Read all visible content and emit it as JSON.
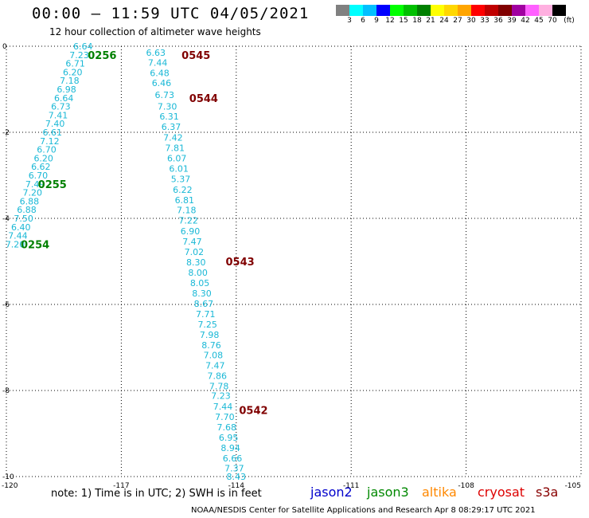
{
  "header": {
    "title": "00:00 – 11:59 UTC 04/05/2021",
    "subtitle": "12 hour collection of altimeter wave heights"
  },
  "colorbar": {
    "colors": [
      "#808080",
      "#00ffff",
      "#00bfff",
      "#0000ff",
      "#00ff00",
      "#00c000",
      "#008000",
      "#ffff00",
      "#ffd700",
      "#ffa500",
      "#ff0000",
      "#c00000",
      "#800000",
      "#a000a0",
      "#ff60ff",
      "#ffb0e0",
      "#000000"
    ],
    "labels": [
      "3",
      "6",
      "9",
      "12",
      "15",
      "18",
      "21",
      "24",
      "27",
      "30",
      "33",
      "36",
      "39",
      "42",
      "45",
      "70",
      "(ft)"
    ]
  },
  "map": {
    "lon_ticks": [
      "-120",
      "-117",
      "-114",
      "-111",
      "-108",
      "-105"
    ],
    "lat_ticks": [
      "0",
      "-2",
      "-4",
      "-6",
      "-8",
      "-10"
    ],
    "lon_range": [
      -120,
      -105
    ],
    "lat_range": [
      -10,
      0
    ],
    "grid": "dotted",
    "label_color": "#1ab8d6"
  },
  "tracks": [
    {
      "satellite": "jason3",
      "points": [
        {
          "lon": -118.0,
          "lat": 0.0,
          "v": "6.64"
        },
        {
          "lon": -118.1,
          "lat": -0.2,
          "v": "7.23"
        },
        {
          "lon": -118.2,
          "lat": -0.4,
          "v": "6.71"
        },
        {
          "lon": -118.27,
          "lat": -0.6,
          "v": "6.20"
        },
        {
          "lon": -118.35,
          "lat": -0.8,
          "v": "7.18"
        },
        {
          "lon": -118.43,
          "lat": -1.0,
          "v": "6.98"
        },
        {
          "lon": -118.5,
          "lat": -1.2,
          "v": "6.64"
        },
        {
          "lon": -118.58,
          "lat": -1.4,
          "v": "6.73"
        },
        {
          "lon": -118.65,
          "lat": -1.6,
          "v": "7.41"
        },
        {
          "lon": -118.73,
          "lat": -1.8,
          "v": "7.40"
        },
        {
          "lon": -118.8,
          "lat": -2.0,
          "v": "6.61"
        },
        {
          "lon": -118.87,
          "lat": -2.2,
          "v": "7.12"
        },
        {
          "lon": -118.95,
          "lat": -2.4,
          "v": "6.70"
        },
        {
          "lon": -119.03,
          "lat": -2.6,
          "v": "6.20"
        },
        {
          "lon": -119.1,
          "lat": -2.8,
          "v": "6.62"
        },
        {
          "lon": -119.17,
          "lat": -3.0,
          "v": "6.70"
        },
        {
          "lon": -119.25,
          "lat": -3.2,
          "v": "7.49"
        },
        {
          "lon": -119.32,
          "lat": -3.4,
          "v": "7.20"
        },
        {
          "lon": -119.4,
          "lat": -3.6,
          "v": "6.88"
        },
        {
          "lon": -119.47,
          "lat": -3.8,
          "v": "6.88"
        },
        {
          "lon": -119.55,
          "lat": -4.0,
          "v": "7.50"
        },
        {
          "lon": -119.62,
          "lat": -4.2,
          "v": "6.40"
        },
        {
          "lon": -119.7,
          "lat": -4.4,
          "v": "7.44"
        },
        {
          "lon": -119.77,
          "lat": -4.6,
          "v": "7.20"
        }
      ],
      "times": [
        {
          "label": "0256",
          "lon": -117.5,
          "lat": -0.2
        },
        {
          "label": "0255",
          "lon": -118.8,
          "lat": -3.2
        },
        {
          "label": "0254",
          "lon": -119.25,
          "lat": -4.6
        }
      ]
    },
    {
      "satellite": "cryosat",
      "points": [
        {
          "lon": -116.1,
          "lat": -0.15,
          "v": "6.63"
        },
        {
          "lon": -116.05,
          "lat": -0.38,
          "v": "7.44"
        },
        {
          "lon": -116.0,
          "lat": -0.62,
          "v": "6.48"
        },
        {
          "lon": -115.95,
          "lat": -0.85,
          "v": "6.46"
        },
        {
          "lon": -115.87,
          "lat": -1.13,
          "v": "6.73"
        },
        {
          "lon": -115.8,
          "lat": -1.4,
          "v": "7.30"
        },
        {
          "lon": -115.75,
          "lat": -1.63,
          "v": "6.31"
        },
        {
          "lon": -115.7,
          "lat": -1.87,
          "v": "6.37"
        },
        {
          "lon": -115.65,
          "lat": -2.12,
          "v": "7.42"
        },
        {
          "lon": -115.6,
          "lat": -2.36,
          "v": "7.81"
        },
        {
          "lon": -115.55,
          "lat": -2.6,
          "v": "6.07"
        },
        {
          "lon": -115.5,
          "lat": -2.84,
          "v": "6.01"
        },
        {
          "lon": -115.45,
          "lat": -3.08,
          "v": "5.37"
        },
        {
          "lon": -115.4,
          "lat": -3.33,
          "v": "6.22"
        },
        {
          "lon": -115.35,
          "lat": -3.57,
          "v": "6.81"
        },
        {
          "lon": -115.3,
          "lat": -3.81,
          "v": "7.18"
        },
        {
          "lon": -115.25,
          "lat": -4.05,
          "v": "7.22"
        },
        {
          "lon": -115.2,
          "lat": -4.3,
          "v": "6.90"
        },
        {
          "lon": -115.15,
          "lat": -4.54,
          "v": "7.47"
        },
        {
          "lon": -115.1,
          "lat": -4.78,
          "v": "7.02"
        },
        {
          "lon": -115.05,
          "lat": -5.02,
          "v": "8.30"
        },
        {
          "lon": -115.0,
          "lat": -5.26,
          "v": "8.00"
        },
        {
          "lon": -114.95,
          "lat": -5.5,
          "v": "8.05"
        },
        {
          "lon": -114.9,
          "lat": -5.74,
          "v": "8.30"
        },
        {
          "lon": -114.85,
          "lat": -5.98,
          "v": "8.67"
        },
        {
          "lon": -114.8,
          "lat": -6.22,
          "v": "7.71"
        },
        {
          "lon": -114.75,
          "lat": -6.46,
          "v": "7.25"
        },
        {
          "lon": -114.7,
          "lat": -6.7,
          "v": "7.98"
        },
        {
          "lon": -114.65,
          "lat": -6.94,
          "v": "8.76"
        },
        {
          "lon": -114.6,
          "lat": -7.18,
          "v": "7.08"
        },
        {
          "lon": -114.55,
          "lat": -7.42,
          "v": "7.47"
        },
        {
          "lon": -114.5,
          "lat": -7.66,
          "v": "7.86"
        },
        {
          "lon": -114.45,
          "lat": -7.9,
          "v": "7.78"
        },
        {
          "lon": -114.4,
          "lat": -8.12,
          "v": "7.23"
        },
        {
          "lon": -114.35,
          "lat": -8.37,
          "v": "7.44"
        },
        {
          "lon": -114.3,
          "lat": -8.61,
          "v": "7.70"
        },
        {
          "lon": -114.25,
          "lat": -8.85,
          "v": "7.68"
        },
        {
          "lon": -114.2,
          "lat": -9.09,
          "v": "6.95"
        },
        {
          "lon": -114.15,
          "lat": -9.33,
          "v": "8.94"
        },
        {
          "lon": -114.1,
          "lat": -9.57,
          "v": "6.66"
        },
        {
          "lon": -114.05,
          "lat": -9.81,
          "v": "7.37"
        },
        {
          "lon": -114.0,
          "lat": -10.0,
          "v": "8.43"
        }
      ],
      "times": [
        {
          "label": "0545",
          "lon": -115.05,
          "lat": -0.2
        },
        {
          "label": "0544",
          "lon": -114.85,
          "lat": -1.2
        },
        {
          "label": "0543",
          "lon": -113.9,
          "lat": -5.0
        },
        {
          "label": "0542",
          "lon": -113.55,
          "lat": -8.45
        }
      ]
    }
  ],
  "time_colors": {
    "jason3": "#008000",
    "cryosat": "#800000"
  },
  "footer": {
    "note": "note:  1) Time is in UTC;  2) SWH is in feet",
    "satellites": [
      {
        "name": "jason2",
        "color": "#0000cc"
      },
      {
        "name": "jason3",
        "color": "#008800"
      },
      {
        "name": "altika",
        "color": "#ff8800"
      },
      {
        "name": "cryosat",
        "color": "#dd0000"
      },
      {
        "name": "s3a",
        "color": "#880000"
      }
    ],
    "credit": "NOAA/NESDIS Center for Satellite Applications and Research     Apr  8 08:29:17 UTC 2021"
  }
}
